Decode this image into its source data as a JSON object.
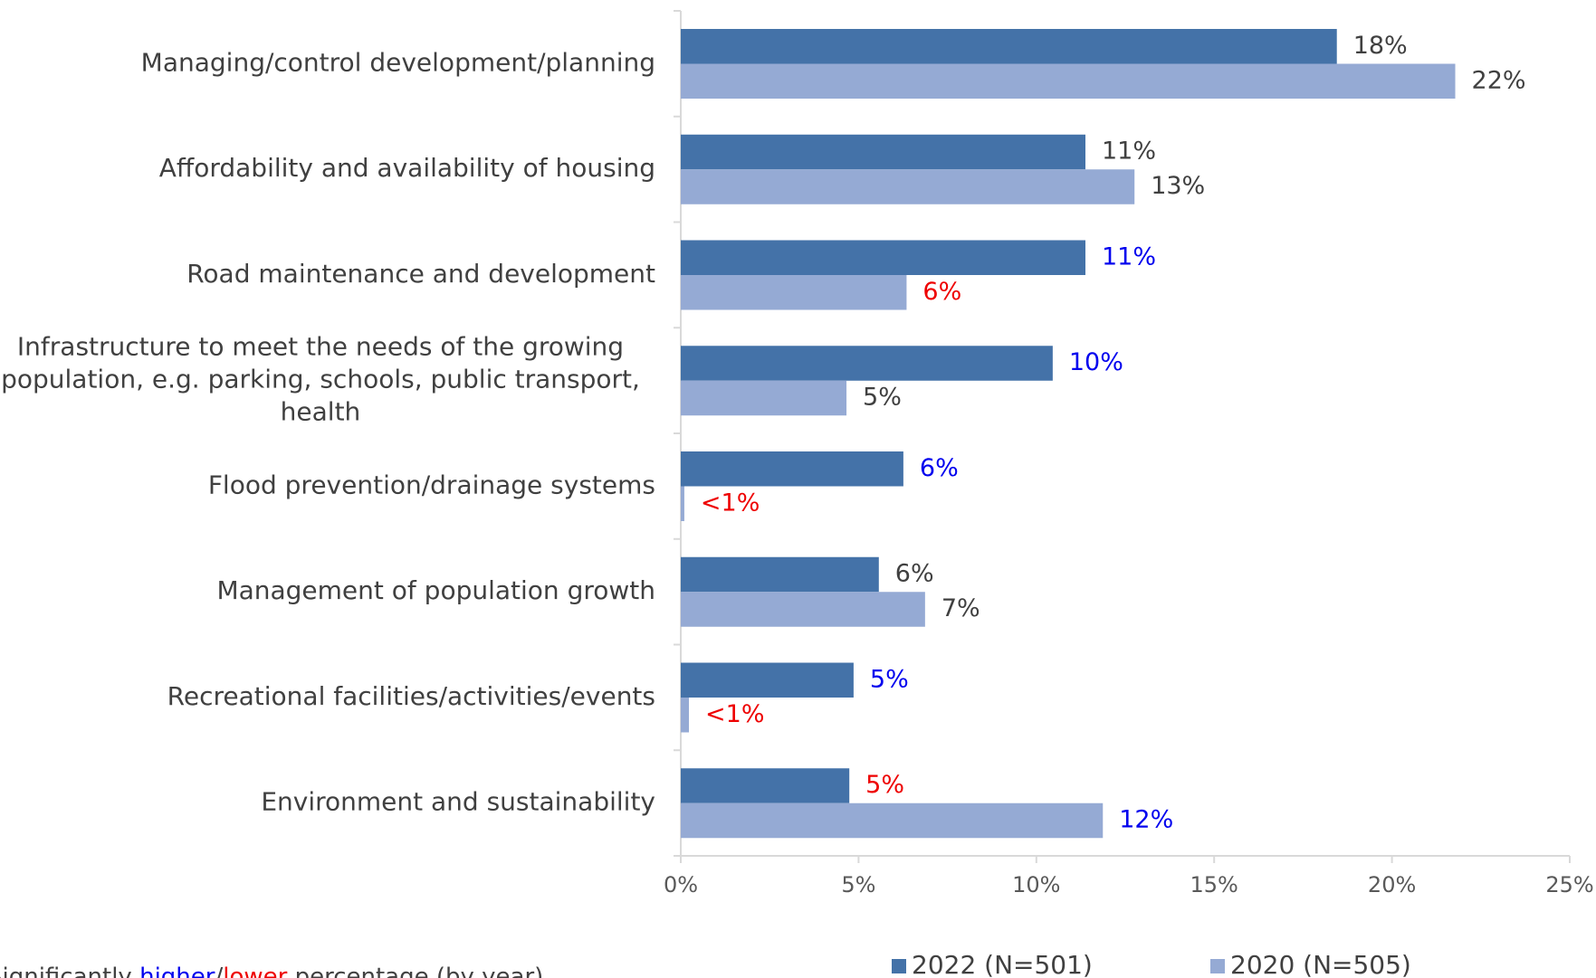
{
  "chart_data": {
    "type": "bar",
    "orientation": "horizontal",
    "categories": [
      "Managing/control development/planning",
      "Affordability and availability of housing",
      "Road maintenance and development",
      "Infrastructure to meet the needs of the growing population, e.g. parking, schools, public transport, health",
      "Flood prevention/drainage systems",
      "Management of population growth",
      "Recreational facilities/activities/events",
      "Environment and sustainability"
    ],
    "series": [
      {
        "name": "2022 (N=501)",
        "color": "#4472a8",
        "values": [
          18.45,
          11.38,
          11.38,
          10.46,
          6.26,
          5.57,
          4.86,
          4.74
        ],
        "value_labels": [
          "18%",
          "11%",
          "11%",
          "10%",
          "6%",
          "6%",
          "5%",
          "5%"
        ],
        "value_label_colors": [
          "#404040",
          "#404040",
          "#0000ee",
          "#0000ee",
          "#0000ee",
          "#404040",
          "#0000ee",
          "#ee0000"
        ]
      },
      {
        "name": "2020 (N=505)",
        "color": "#95aad4",
        "values": [
          21.78,
          12.76,
          6.35,
          4.66,
          0.1,
          6.87,
          0.23,
          11.87
        ],
        "value_labels": [
          "22%",
          "13%",
          "6%",
          "5%",
          "<1%",
          "7%",
          "<1%",
          "12%"
        ],
        "value_label_colors": [
          "#404040",
          "#404040",
          "#ee0000",
          "#404040",
          "#ee0000",
          "#404040",
          "#ee0000",
          "#0000ee"
        ]
      }
    ],
    "xlim": [
      0,
      25
    ],
    "xticks": [
      {
        "value": 0,
        "label": "0%"
      },
      {
        "value": 5,
        "label": "5%"
      },
      {
        "value": 10,
        "label": "10%"
      },
      {
        "value": 15,
        "label": "15%"
      },
      {
        "value": 20,
        "label": "20%"
      },
      {
        "value": 25,
        "label": "25%"
      }
    ],
    "legend": "bottom",
    "note": {
      "parts": [
        {
          "text": "Significantly ",
          "color": "#404040"
        },
        {
          "text": "higher",
          "color": "#0000ee",
          "underline": true
        },
        {
          "text": "/",
          "color": "#404040"
        },
        {
          "text": "lower",
          "color": "#ee0000",
          "underline": true
        },
        {
          "text": " percentage (by year)",
          "color": "#404040"
        }
      ]
    }
  }
}
